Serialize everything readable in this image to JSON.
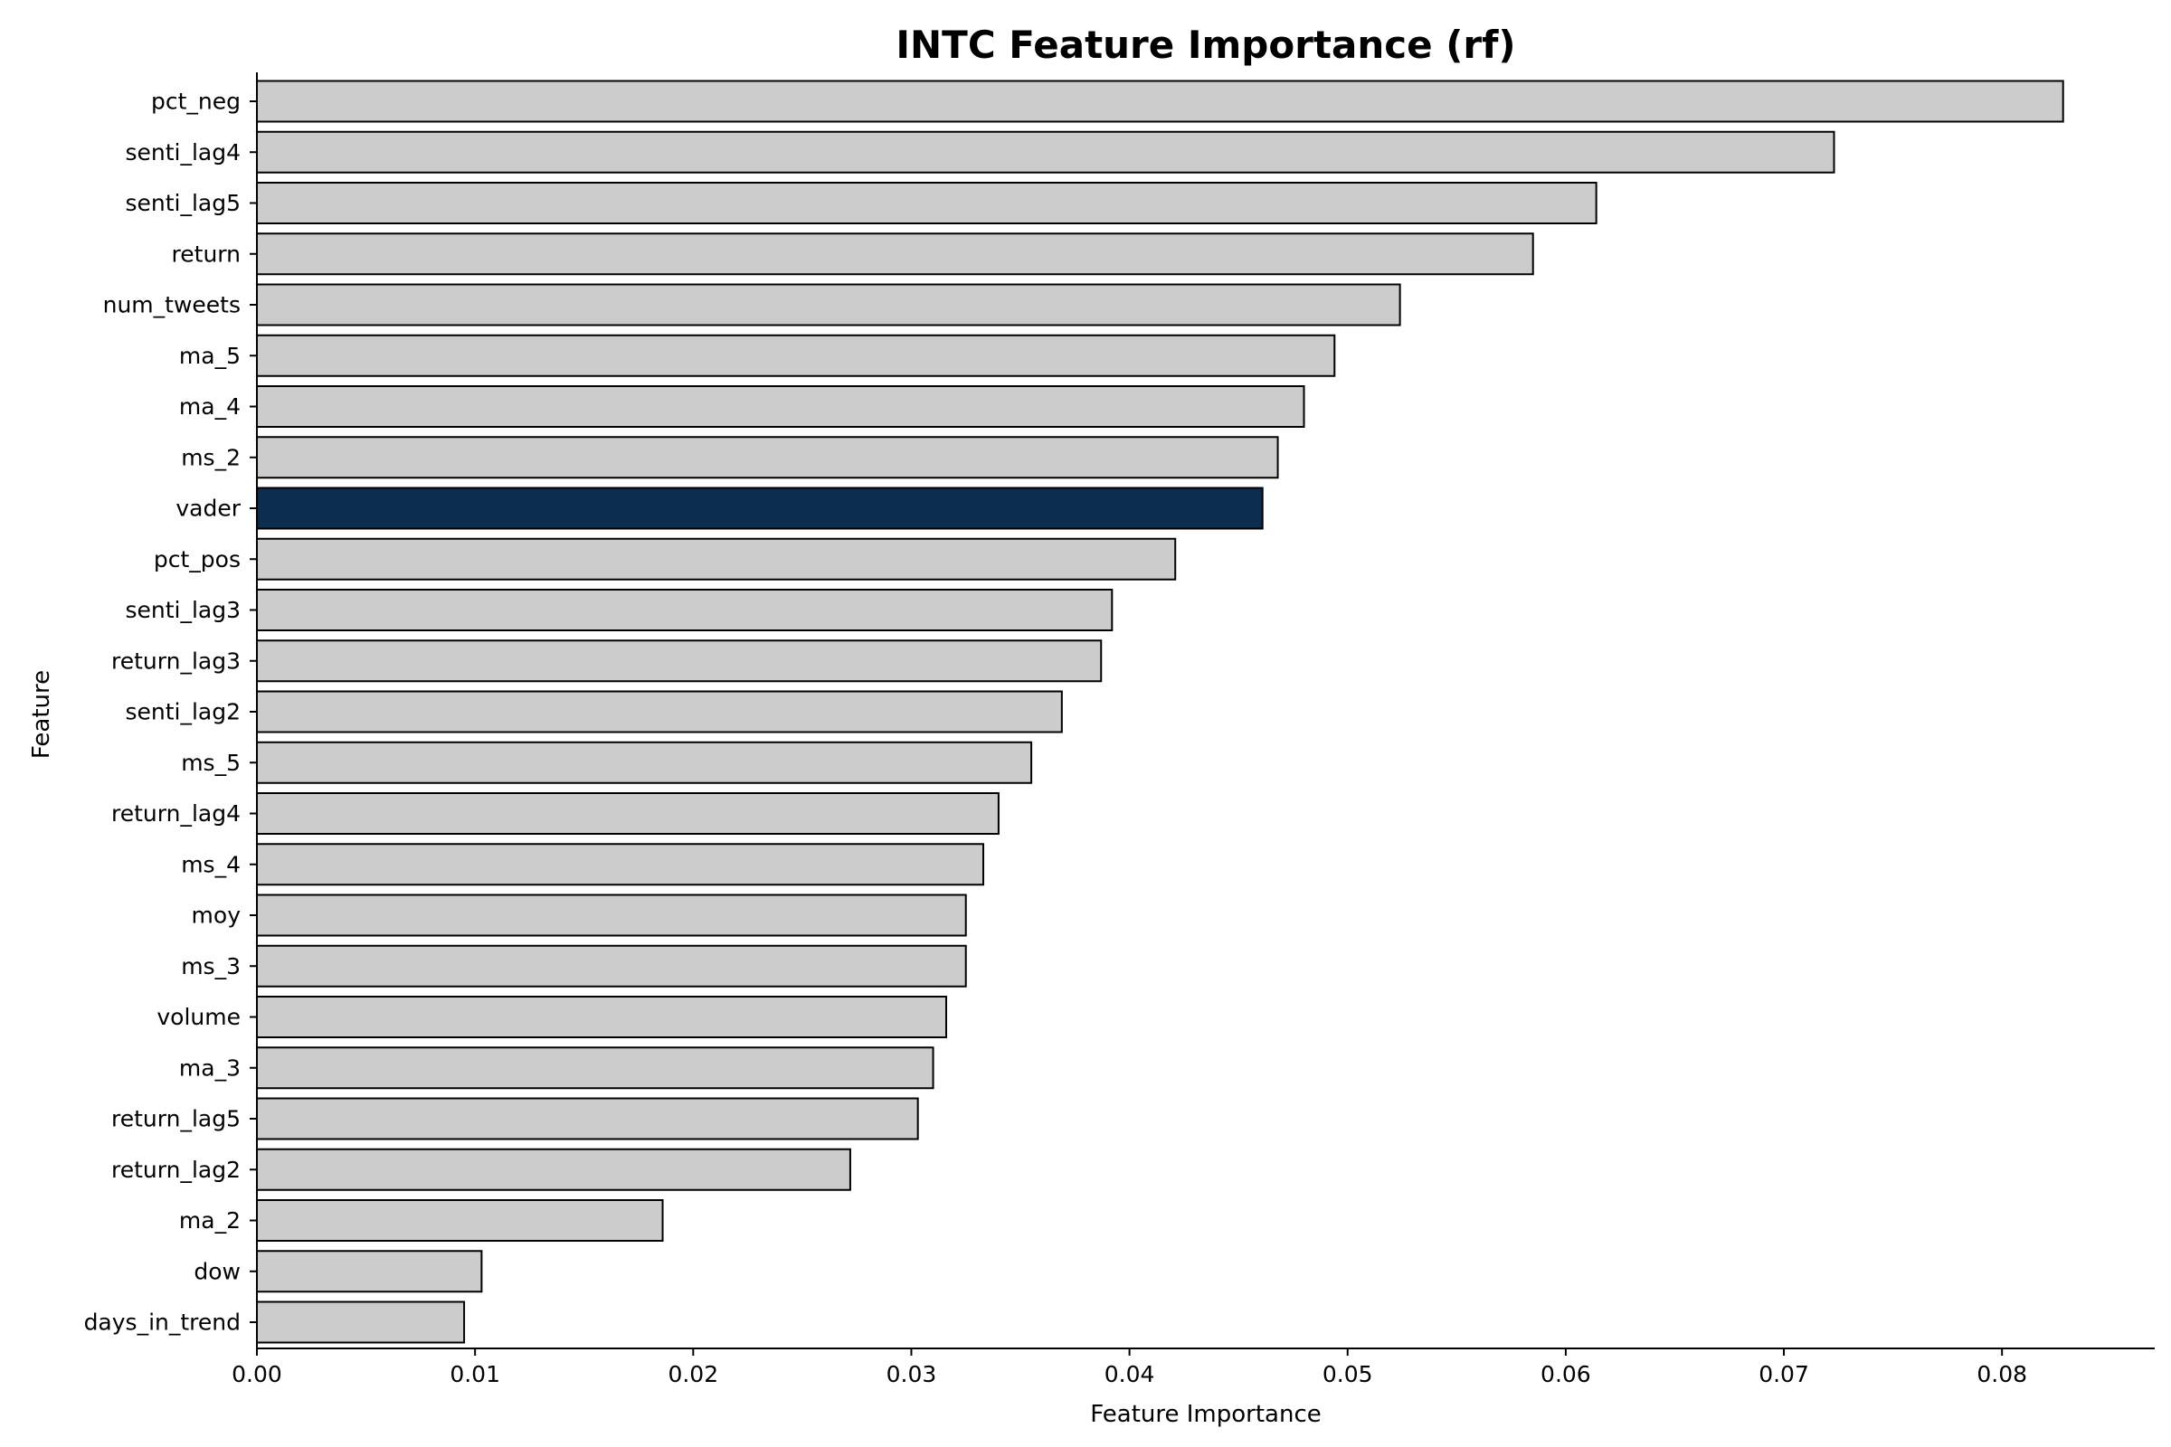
{
  "chart_data": {
    "type": "bar",
    "orientation": "horizontal",
    "title": "INTC Feature Importance (rf)",
    "xlabel": "Feature Importance",
    "ylabel": "Feature",
    "xlim": [
      0,
      0.087
    ],
    "xticks": [
      0.0,
      0.01,
      0.02,
      0.03,
      0.04,
      0.05,
      0.06,
      0.07,
      0.08
    ],
    "xtick_labels": [
      "0.00",
      "0.01",
      "0.02",
      "0.03",
      "0.04",
      "0.05",
      "0.06",
      "0.07",
      "0.08"
    ],
    "grid": false,
    "categories": [
      "pct_neg",
      "senti_lag4",
      "senti_lag5",
      "return",
      "num_tweets",
      "ma_5",
      "ma_4",
      "ms_2",
      "vader",
      "pct_pos",
      "senti_lag3",
      "return_lag3",
      "senti_lag2",
      "ms_5",
      "return_lag4",
      "ms_4",
      "moy",
      "ms_3",
      "volume",
      "ma_3",
      "return_lag5",
      "return_lag2",
      "ma_2",
      "dow",
      "days_in_trend"
    ],
    "values": [
      0.0828,
      0.0723,
      0.0614,
      0.0585,
      0.0524,
      0.0494,
      0.048,
      0.0468,
      0.0461,
      0.0421,
      0.0392,
      0.0387,
      0.0369,
      0.0355,
      0.034,
      0.0333,
      0.0325,
      0.0325,
      0.0316,
      0.031,
      0.0303,
      0.0272,
      0.0186,
      0.0103,
      0.0095
    ],
    "colors": {
      "default_bar": "#cccccc",
      "highlight_bar": "#0d2d4f",
      "bar_edge": "#000000"
    },
    "highlight": "vader"
  }
}
